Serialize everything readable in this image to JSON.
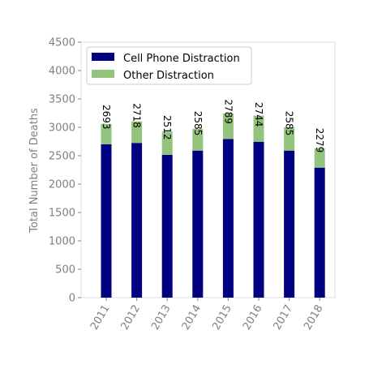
{
  "chart_data": {
    "type": "bar",
    "stacked": true,
    "categories": [
      "2011",
      "2012",
      "2013",
      "2014",
      "2015",
      "2016",
      "2017",
      "2018"
    ],
    "series": [
      {
        "name": "Cell Phone Distraction",
        "color": "#000080",
        "values": [
          2700,
          2725,
          2515,
          2590,
          2795,
          2745,
          2590,
          2290
        ]
      },
      {
        "name": "Other Distraction",
        "color": "#93c47d",
        "values": [
          360,
          380,
          410,
          385,
          450,
          460,
          410,
          340
        ]
      }
    ],
    "data_labels": [
      "2693",
      "2718",
      "2512",
      "2585",
      "2789",
      "2744",
      "2585",
      "2279"
    ],
    "xlabel": "",
    "ylabel": "Total Number of Deaths",
    "ylim": [
      0,
      4500
    ],
    "yticks": [
      "0",
      "500",
      "1000",
      "1500",
      "2000",
      "2500",
      "3000",
      "3500",
      "4000",
      "4500"
    ],
    "grid": false,
    "legend_position": "top-left"
  }
}
